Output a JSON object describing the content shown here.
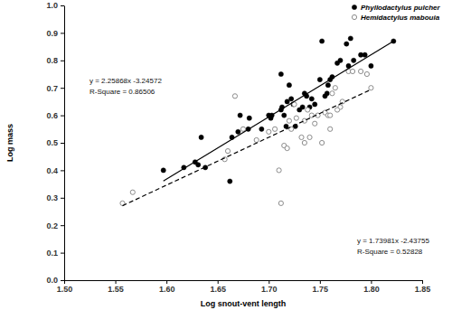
{
  "chart_data": {
    "type": "scatter",
    "x_label": "Log snout-vent length",
    "y_label": "Log mass",
    "xlim": [
      1.5,
      1.85
    ],
    "ylim": [
      0,
      1
    ],
    "xticks": [
      {
        "value": 1.5,
        "label": "1.50"
      },
      {
        "value": 1.55,
        "label": "1.55"
      },
      {
        "value": 1.6,
        "label": "1.60"
      },
      {
        "value": 1.65,
        "label": "1.65"
      },
      {
        "value": 1.7,
        "label": "1.70"
      },
      {
        "value": 1.75,
        "label": "1.75"
      },
      {
        "value": 1.8,
        "label": "1.80"
      },
      {
        "value": 1.85,
        "label": "1.85"
      }
    ],
    "yticks": [
      {
        "value": 0,
        "label": "0.0"
      },
      0.1,
      0.2,
      0.3,
      0.4,
      0.5,
      0.6,
      0.7,
      0.8,
      0.9,
      {
        "value": 1,
        "label": "1.0"
      }
    ],
    "legend": "upper right",
    "grid": false,
    "annotations": [
      "y = 2.25868x -3.24572",
      "R-Square = 0.86506",
      "y = 1.73981x -2.43755",
      "R-Square = 0.52828"
    ],
    "series": [
      {
        "name": "Phyllodactylus pulcher",
        "type": "scatter",
        "marker": "filled_circle",
        "color": "#000000",
        "x": [
          1.597,
          1.617,
          1.628,
          1.631,
          1.634,
          1.638,
          1.662,
          1.664,
          1.672,
          1.67,
          1.68,
          1.681,
          1.693,
          1.7,
          1.702,
          1.703,
          1.712,
          1.712,
          1.713,
          1.715,
          1.717,
          1.72,
          1.722,
          1.724,
          1.726,
          1.73,
          1.733,
          1.735,
          1.737,
          1.74,
          1.742,
          1.745,
          1.75,
          1.752,
          1.755,
          1.757,
          1.758,
          1.76,
          1.762,
          1.767,
          1.77,
          1.776,
          1.78,
          1.778,
          1.79,
          1.794,
          1.8,
          1.822,
          1.783,
          1.718
        ],
        "values": [
          0.4,
          0.41,
          0.43,
          0.42,
          0.52,
          0.41,
          0.36,
          0.52,
          0.6,
          0.54,
          0.55,
          0.59,
          0.55,
          0.6,
          0.59,
          0.6,
          0.75,
          0.62,
          0.63,
          0.6,
          0.56,
          0.71,
          0.66,
          0.64,
          0.56,
          0.62,
          0.63,
          0.68,
          0.67,
          0.63,
          0.66,
          0.64,
          0.73,
          0.87,
          0.67,
          0.68,
          0.71,
          0.73,
          0.74,
          0.79,
          0.8,
          0.86,
          0.88,
          0.78,
          0.82,
          0.82,
          0.78,
          0.87,
          0.8,
          0.65
        ]
      },
      {
        "name": "Hemidactylus mabouia",
        "type": "scatter",
        "marker": "open_circle",
        "color": "#8c8c8c",
        "x": [
          1.557,
          1.567,
          1.657,
          1.66,
          1.667,
          1.675,
          1.688,
          1.7,
          1.706,
          1.71,
          1.712,
          1.715,
          1.718,
          1.72,
          1.722,
          1.725,
          1.727,
          1.732,
          1.735,
          1.738,
          1.74,
          1.742,
          1.745,
          1.748,
          1.752,
          1.755,
          1.758,
          1.76,
          1.762,
          1.765,
          1.77,
          1.772,
          1.778,
          1.782,
          1.79,
          1.796,
          1.8,
          1.76,
          1.767,
          1.735
        ],
        "values": [
          0.28,
          0.32,
          0.44,
          0.47,
          0.67,
          0.55,
          0.51,
          0.54,
          0.55,
          0.4,
          0.28,
          0.49,
          0.48,
          0.58,
          0.55,
          0.64,
          0.59,
          0.52,
          0.58,
          0.62,
          0.52,
          0.6,
          0.57,
          0.6,
          0.5,
          0.61,
          0.6,
          0.6,
          0.68,
          0.7,
          0.63,
          0.65,
          0.76,
          0.76,
          0.76,
          0.75,
          0.7,
          0.55,
          0.62,
          0.5
        ]
      },
      {
        "type": "line",
        "line_style": "solid",
        "color": "#000000",
        "x": [
          1.597,
          1.822
        ],
        "values": [
          0.361,
          0.87
        ]
      },
      {
        "type": "line",
        "line_style": "dashed",
        "color": "#000000",
        "x": [
          1.557,
          1.8
        ],
        "values": [
          0.271,
          0.694
        ]
      }
    ]
  }
}
